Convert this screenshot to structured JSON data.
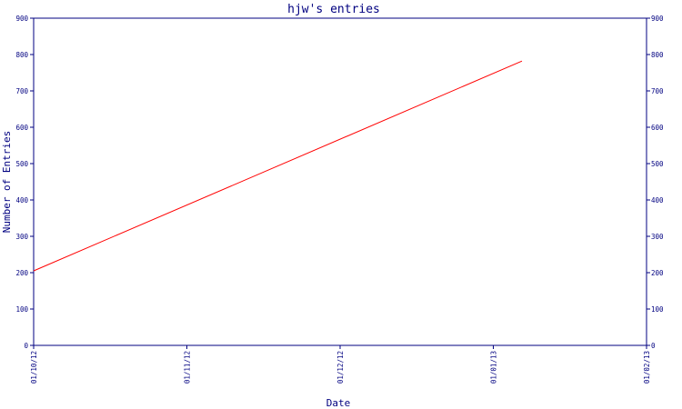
{
  "chart_data": {
    "type": "line",
    "title": "hjw's entries",
    "xlabel": "Date",
    "ylabel": "Number of Entries",
    "ylim": [
      0,
      900
    ],
    "y_ticks": [
      "0",
      "100",
      "200",
      "300",
      "400",
      "500",
      "600",
      "700",
      "800",
      "900"
    ],
    "x_ticks": [
      "01/10/12",
      "01/11/12",
      "01/12/12",
      "01/01/13",
      "01/02/13"
    ],
    "xlim": [
      "2012-10-01",
      "2013-02-01"
    ],
    "grid": false,
    "secondary_y_axis": true,
    "series": [
      {
        "color": "#ff0000",
        "x": [
          "2012-10-01",
          "2013-01-07"
        ],
        "y": [
          205,
          782
        ]
      }
    ]
  }
}
